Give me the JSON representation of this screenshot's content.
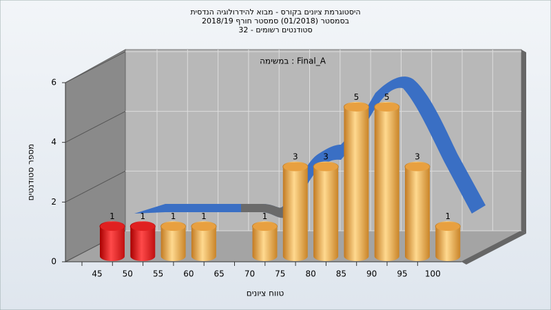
{
  "chart_data": {
    "type": "bar",
    "title": [
      "היסטוגרמת ציונים בקורס - מבוא להידרולוגיה הנדסית",
      "בסמסטר  (01/2018)  סמסטר חורף 2018/19",
      "סטודנטים רשומים - 32"
    ],
    "subtitle": "במשימה : Final_A",
    "y_label": "מספר סטודנטים",
    "x_label": "טווח ציונים",
    "categories": [
      "45",
      "50",
      "55",
      "60",
      "65",
      "70",
      "75",
      "80",
      "85",
      "90",
      "95",
      "100"
    ],
    "values": [
      1,
      1,
      1,
      1,
      0,
      1,
      3,
      3,
      5,
      5,
      3,
      1
    ],
    "colors": [
      "#e02020",
      "#e02020",
      "#e8a040",
      "#e8a040",
      "#e8a040",
      "#e8a040",
      "#e8a040",
      "#e8a040",
      "#e8a040",
      "#e8a040",
      "#e8a040",
      "#e8a040"
    ],
    "ylim": [
      0,
      6
    ],
    "yticks": [
      0,
      2,
      4,
      6
    ],
    "grid": true
  }
}
